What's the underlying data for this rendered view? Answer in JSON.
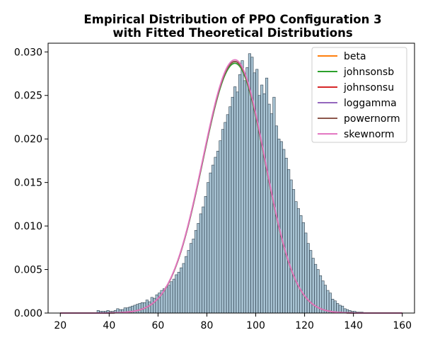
{
  "chart_data": {
    "type": "histogram",
    "title": "Empirical Distribution of PPO Configuration 3\nwith Fitted Theoretical Distributions",
    "xlim": [
      15,
      165
    ],
    "ylim": [
      0,
      0.031
    ],
    "xticks": [
      20,
      40,
      60,
      80,
      100,
      120,
      140,
      160
    ],
    "yticks": [
      0.0,
      0.005,
      0.01,
      0.015,
      0.02,
      0.025,
      0.03
    ],
    "ytick_format": "0.000",
    "grid": false,
    "legend_position": "top-right",
    "histogram": {
      "bin_start": 35,
      "bin_width": 1,
      "fill_color": "#6e9bb5",
      "edge_color": "#2e3f4c",
      "densities": [
        0.0003,
        0.0002,
        0.0002,
        0.0002,
        0.0003,
        0.0002,
        0.0002,
        0.0003,
        0.0005,
        0.0004,
        0.0004,
        0.0006,
        0.0006,
        0.0007,
        0.0008,
        0.0009,
        0.001,
        0.0011,
        0.0012,
        0.0012,
        0.0015,
        0.0013,
        0.0018,
        0.0017,
        0.0021,
        0.0023,
        0.0026,
        0.0028,
        0.003,
        0.0032,
        0.0036,
        0.0039,
        0.0044,
        0.0047,
        0.0052,
        0.0057,
        0.0065,
        0.0072,
        0.008,
        0.0085,
        0.0095,
        0.0103,
        0.0114,
        0.0122,
        0.0134,
        0.015,
        0.0161,
        0.017,
        0.0179,
        0.0186,
        0.0198,
        0.0211,
        0.0219,
        0.0228,
        0.0237,
        0.0248,
        0.026,
        0.0254,
        0.0274,
        0.029,
        0.0267,
        0.0282,
        0.0298,
        0.0294,
        0.0276,
        0.028,
        0.025,
        0.0262,
        0.0252,
        0.027,
        0.024,
        0.0229,
        0.0248,
        0.0215,
        0.02,
        0.0197,
        0.0188,
        0.0178,
        0.0165,
        0.0153,
        0.0142,
        0.0128,
        0.012,
        0.0112,
        0.0104,
        0.0092,
        0.008,
        0.0072,
        0.0063,
        0.0056,
        0.005,
        0.0043,
        0.0037,
        0.0032,
        0.0026,
        0.0023,
        0.0016,
        0.0014,
        0.0011,
        0.0009,
        0.0008,
        0.0005,
        0.0004,
        0.0003,
        0.0002,
        0.0002,
        0.0001,
        0.0001,
        0.0001
      ]
    },
    "fit_params": {
      "mu": 91.5,
      "sigma_left": 13.2,
      "sigma_right": 12.3,
      "x_start": 20,
      "x_end": 160
    },
    "series": [
      {
        "name": "beta",
        "color": "#ff7f0e",
        "peak": 0.0289
      },
      {
        "name": "johnsonsb",
        "color": "#2ca02c",
        "peak": 0.0287
      },
      {
        "name": "johnsonsu",
        "color": "#d62728",
        "peak": 0.0289
      },
      {
        "name": "loggamma",
        "color": "#9467bd",
        "peak": 0.0289
      },
      {
        "name": "powernorm",
        "color": "#8c564b",
        "peak": 0.0289
      },
      {
        "name": "skewnorm",
        "color": "#e377c2",
        "peak": 0.0291
      }
    ]
  }
}
